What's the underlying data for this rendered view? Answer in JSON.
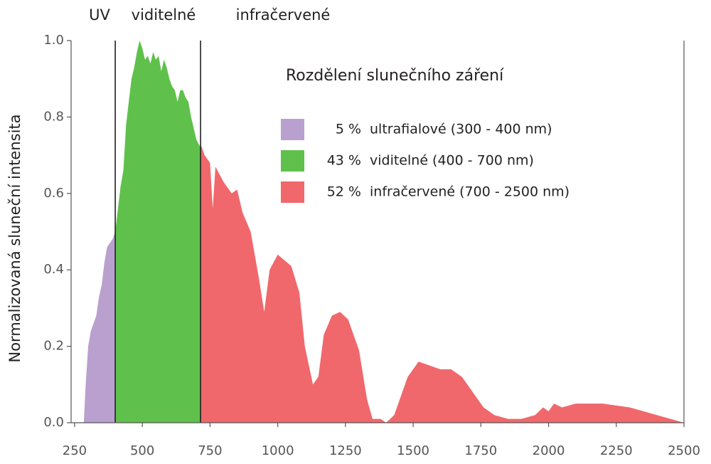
{
  "chart_data": {
    "type": "area",
    "ylabel": "Normalizovaná sluneční intensita",
    "xlim": [
      237,
      2500
    ],
    "ylim": [
      0,
      1.0
    ],
    "xticks": [
      250,
      500,
      750,
      1000,
      1250,
      1500,
      1750,
      2000,
      2250,
      2500
    ],
    "yticks": [
      {
        "value": 0,
        "label": "0.0"
      },
      0.2,
      0.4,
      0.6,
      0.8,
      {
        "value": 1,
        "label": "1.0"
      }
    ],
    "region_labels": [
      "UV",
      "viditelné",
      "infračervené"
    ],
    "boundaries": [
      400,
      715
    ],
    "legend_title": "Rozdělení slunečního záření",
    "series": [
      {
        "name": "ultrafialové (300 - 400 nm)",
        "share": "5 %",
        "color": "#b9a0cf",
        "x": [
          284,
          290,
          300,
          310,
          320,
          330,
          340,
          350,
          360,
          370,
          380,
          390,
          400
        ],
        "values": [
          0,
          0.09,
          0.2,
          0.24,
          0.26,
          0.28,
          0.33,
          0.36,
          0.42,
          0.46,
          0.47,
          0.48,
          0.5
        ]
      },
      {
        "name": "viditelné (400 - 700 nm)",
        "share": "43 %",
        "color": "#5fc14b",
        "x": [
          400,
          410,
          420,
          430,
          440,
          450,
          460,
          470,
          480,
          490,
          500,
          510,
          520,
          530,
          540,
          550,
          560,
          570,
          580,
          590,
          600,
          610,
          620,
          630,
          640,
          650,
          660,
          670,
          680,
          690,
          700,
          715
        ],
        "values": [
          0.5,
          0.56,
          0.62,
          0.66,
          0.78,
          0.84,
          0.9,
          0.93,
          0.97,
          1.0,
          0.98,
          0.95,
          0.96,
          0.94,
          0.97,
          0.95,
          0.96,
          0.92,
          0.95,
          0.93,
          0.9,
          0.88,
          0.87,
          0.84,
          0.87,
          0.87,
          0.85,
          0.84,
          0.8,
          0.77,
          0.74,
          0.72
        ]
      },
      {
        "name": "infračervené (700 - 2500 nm)",
        "share": "52 %",
        "color": "#f0686b",
        "x": [
          715,
          730,
          750,
          760,
          770,
          800,
          830,
          850,
          870,
          900,
          930,
          950,
          970,
          1000,
          1050,
          1080,
          1100,
          1130,
          1150,
          1170,
          1200,
          1230,
          1260,
          1300,
          1330,
          1350,
          1380,
          1400,
          1430,
          1450,
          1480,
          1520,
          1560,
          1600,
          1640,
          1680,
          1720,
          1760,
          1800,
          1850,
          1900,
          1950,
          1980,
          2000,
          2020,
          2050,
          2100,
          2150,
          2200,
          2300,
          2400,
          2450,
          2500
        ],
        "values": [
          0.73,
          0.7,
          0.68,
          0.56,
          0.67,
          0.63,
          0.6,
          0.61,
          0.55,
          0.5,
          0.38,
          0.29,
          0.4,
          0.44,
          0.41,
          0.34,
          0.2,
          0.1,
          0.12,
          0.23,
          0.28,
          0.29,
          0.27,
          0.19,
          0.06,
          0.01,
          0.01,
          0,
          0.02,
          0.06,
          0.12,
          0.16,
          0.15,
          0.14,
          0.14,
          0.12,
          0.08,
          0.04,
          0.02,
          0.01,
          0.01,
          0.02,
          0.04,
          0.03,
          0.05,
          0.04,
          0.05,
          0.05,
          0.05,
          0.04,
          0.02,
          0.01,
          0
        ]
      }
    ]
  }
}
